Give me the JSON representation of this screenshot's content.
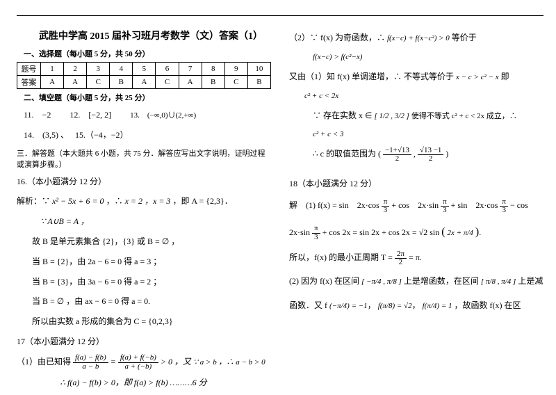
{
  "header_rule": true,
  "title": "武胜中学高 2015 届补习班月考数学（文）答案（1）",
  "section_choice": "一、选择题（每小题 5 分，共 50 分）",
  "table": {
    "row_header": "题号",
    "nums": [
      "1",
      "2",
      "3",
      "4",
      "5",
      "6",
      "7",
      "8",
      "9",
      "10"
    ],
    "ans_header": "答案",
    "answers": [
      "A",
      "A",
      "C",
      "B",
      "A",
      "C",
      "A",
      "B",
      "C",
      "B"
    ]
  },
  "section_fill": "二、填空题（每小题 5 分，共 25 分）",
  "fill_line1_a": "11.　−2",
  "fill_line1_b": "12.　[−2, 2]",
  "fill_line1_c": "13.　(−∞,0)∪(2,+∞)",
  "fill_line2_a": "14.　(3,5) 、",
  "fill_line2_b": "15.（−4，−2）",
  "section_solve": "三．解答题（本大题共 6 小题，共 75 分．解答应写出文字说明，证明过程或演算步骤。）",
  "q16_h": "16.（本小题满分 12 分）",
  "q16_l1_pre": "解析：∵",
  "q16_l1_eq": "x² − 5x + 6 = 0",
  "q16_l1_mid": "，∴",
  "q16_l1_res": "x = 2 ，x = 3",
  "q16_l1_post": "，即 A = {2,3}．",
  "q16_l2": "∵ A∪B = A ，",
  "q16_l3": "故 B 是单元素集合 {2}，{3} 或 B = ∅ ，",
  "q16_l4": "当 B = {2}，由 2a − 6 = 0 得 a = 3 ；",
  "q16_l5": "当 B = {3}，由 3a − 6 = 0 得 a = 2 ；",
  "q16_l6": "当 B = ∅ ，由 ax − 6 = 0 得 a = 0.",
  "q16_l7": "所以由实数 a 形成的集合为 C = {0,2,3}",
  "q17_h": "17（本小题满分 12 分）",
  "q17_l1_pre": "（1）由已知得",
  "q17_frac1_num": "f(a) − f(b)",
  "q17_frac1_den": "a − b",
  "q17_mid1": " = ",
  "q17_frac2_num": "f(a) + f(−b)",
  "q17_frac2_den": "a + (−b)",
  "q17_mid2": " > 0 ，又",
  "q17_q": "∵ a > b ，∴ a − b > 0",
  "q17_l2": "∴ f(a) − f(b) > 0，即 f(a) > f(b) ………6 分",
  "r1_pre": "（2）∵ f(x) 为奇函数，∴",
  "r1_eq": "f(x−c) + f(x−c²) > 0",
  "r1_post": "等价于",
  "r2_eq": "f(x−c) > f(c²−x)",
  "r3_pre": "又由（1）知 f(x) 单调递增，∴ 不等式等价于",
  "r3_eq": "x − c > c² − x",
  "r3_post": "即",
  "r4_eq": "c² + c < 2x",
  "r5_pre": "∵ 存在实数 x ∈",
  "r5_set": "[ 1/2 , 3/2 ]",
  "r5_post": "使得不等式 c² + c < 2x 成立，∴",
  "r6_eq": "c² + c < 3",
  "r7_pre": "∴ c 的取值范围为",
  "r7_rng_a_num": "−1+√13",
  "r7_rng_a_den": "2",
  "r7_rng_b_num": "√13 −1",
  "r7_rng_b_den": "2",
  "q18_h": "18（本小题满分 12 分）",
  "q18_l1_pre": "解　(1) f(x) = sin　2x·cos",
  "q18_pi3": "π/3",
  "q18_l1_b": " + cos　2x·sin",
  "q18_l1_c": " + sin　2x·cos",
  "q18_l1_d": " − cos",
  "q18_l2_a": "2x·sin",
  "q18_l2_b": " + cos 2x = sin 2x + cos 2x = √2 sin",
  "q18_paren_inner": "2x + π/4",
  "q18_l3_pre": "所以，f(x) 的最小正周期 T =",
  "q18_T_num": "2π",
  "q18_T_den": "2",
  "q18_l3_post": " = π.",
  "q18_l4_pre": "(2) 因为 f(x) 在区间",
  "q18_int1": "[ −π/4 , π/8 ]",
  "q18_l4_mid": "上是增函数，在区间",
  "q18_int2": "[ π/8 , π/4 ]",
  "q18_l4_post": "上是减",
  "q18_l5_pre": "函数．又 f",
  "q18_v1": "(−π/4) = −1",
  "q18_v2": "f(π/8) = √2",
  "q18_v3": "f(π/4) = 1",
  "q18_l5_post": "，故函数 f(x) 在区"
}
